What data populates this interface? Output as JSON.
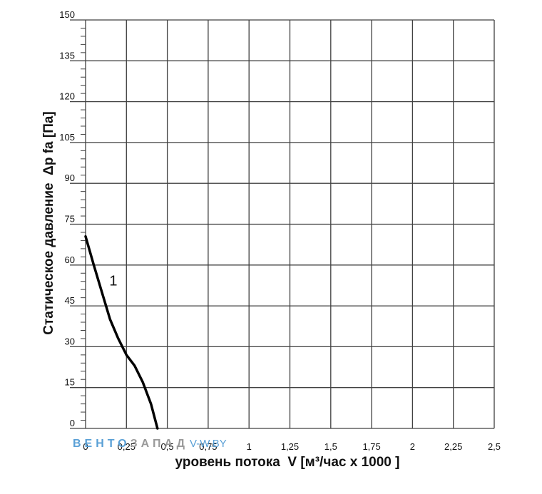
{
  "chart_data": {
    "type": "line",
    "xlabel": "уровень потока  V [м³/час x 1000 ]",
    "ylabel": "Статическое давление  Δp fa [Па]",
    "xlim": [
      0,
      2.5
    ],
    "ylim": [
      0,
      150
    ],
    "x_ticks": [
      "0",
      "0,25",
      "0,5",
      "0,75",
      "1",
      "1,25",
      "1,5",
      "1,75",
      "2",
      "2,25",
      "2,5"
    ],
    "y_ticks": [
      "0",
      "15",
      "30",
      "45",
      "60",
      "75",
      "90",
      "105",
      "120",
      "135",
      "150"
    ],
    "grid": true,
    "series": [
      {
        "name": "1",
        "x": [
          0,
          0.05,
          0.1,
          0.15,
          0.2,
          0.25,
          0.3,
          0.35,
          0.4,
          0.44
        ],
        "y": [
          70.5,
          60,
          50,
          40,
          33,
          27,
          23,
          17,
          9,
          0
        ]
      }
    ],
    "colors": {
      "line": "#000000",
      "grid": "#404040"
    }
  },
  "watermark": {
    "part1": "ВЕНТО",
    "part2": "ЗАПАД",
    "part3": "V-W.BY",
    "color1": "#5aa0d6",
    "color2": "#9a9a9a"
  }
}
